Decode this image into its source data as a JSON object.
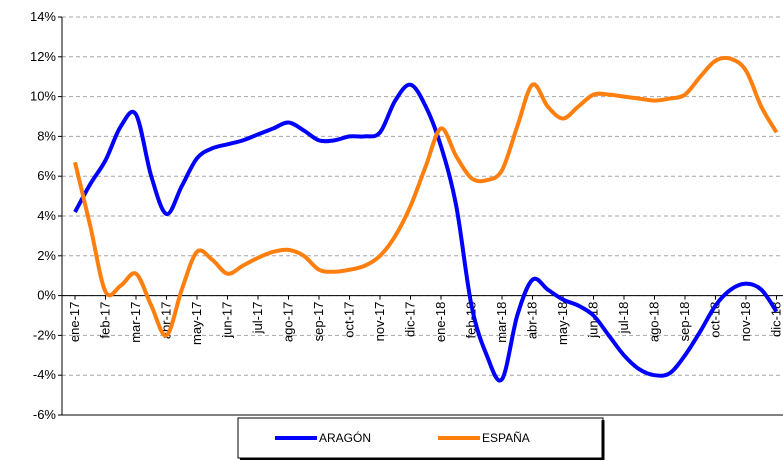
{
  "chart_data": {
    "type": "line",
    "categories": [
      "ene-17",
      null,
      "feb-17",
      null,
      "mar-17",
      null,
      "abr-17",
      null,
      "may-17",
      null,
      "jun-17",
      null,
      "jul-17",
      null,
      "ago-17",
      null,
      "sep-17",
      null,
      "oct-17",
      null,
      "nov-17",
      null,
      "dic-17",
      null,
      "ene-18",
      null,
      "feb-18",
      null,
      "mar-18",
      null,
      "abr-18",
      null,
      "may-18",
      null,
      "jun-18",
      null,
      "jul-18",
      null,
      "ago-18",
      null,
      "sep-18",
      null,
      "oct-18",
      null,
      "nov-18",
      null,
      "dic-18"
    ],
    "series": [
      {
        "name": "ARAGÓN",
        "color": "#0000ff",
        "values": [
          4.2,
          5.6,
          6.8,
          8.5,
          9.1,
          6.0,
          4.1,
          5.5,
          6.9,
          7.4,
          7.6,
          7.8,
          8.1,
          8.4,
          8.7,
          8.3,
          7.8,
          7.8,
          8.0,
          8.0,
          8.2,
          9.8,
          10.6,
          9.5,
          7.5,
          4.5,
          -0.5,
          -3.0,
          -4.2,
          -1.0,
          0.8,
          0.3,
          -0.2,
          -0.5,
          -1.0,
          -2.0,
          -3.0,
          -3.7,
          -4.0,
          -3.9,
          -3.0,
          -1.8,
          -0.5,
          0.3,
          0.6,
          0.3,
          -0.8
        ]
      },
      {
        "name": "ESPAÑA",
        "color": "#ff7f0e",
        "values": [
          6.7,
          3.5,
          0.2,
          0.5,
          1.1,
          -0.5,
          -2.0,
          0.3,
          2.2,
          1.8,
          1.1,
          1.5,
          1.9,
          2.2,
          2.3,
          2.0,
          1.3,
          1.2,
          1.3,
          1.5,
          2.0,
          3.0,
          4.5,
          6.5,
          8.4,
          7.0,
          5.9,
          5.8,
          6.3,
          8.5,
          10.6,
          9.5,
          8.9,
          9.5,
          10.1,
          10.1,
          10.0,
          9.9,
          9.8,
          9.9,
          10.1,
          11.0,
          11.8,
          11.9,
          11.3,
          9.5,
          8.2
        ]
      }
    ],
    "ylim": [
      -6,
      14
    ],
    "yticks": [
      {
        "value": -6,
        "label": "-6%"
      },
      {
        "value": -4,
        "label": "-4%"
      },
      {
        "value": -2,
        "label": "-2%"
      },
      {
        "value": 0,
        "label": "0%"
      },
      {
        "value": 2,
        "label": "2%"
      },
      {
        "value": 4,
        "label": "4%"
      },
      {
        "value": 6,
        "label": "6%"
      },
      {
        "value": 8,
        "label": "8%"
      },
      {
        "value": 10,
        "label": "10%"
      },
      {
        "value": 12,
        "label": "12%"
      },
      {
        "value": 14,
        "label": "14%"
      }
    ],
    "grid": true
  }
}
